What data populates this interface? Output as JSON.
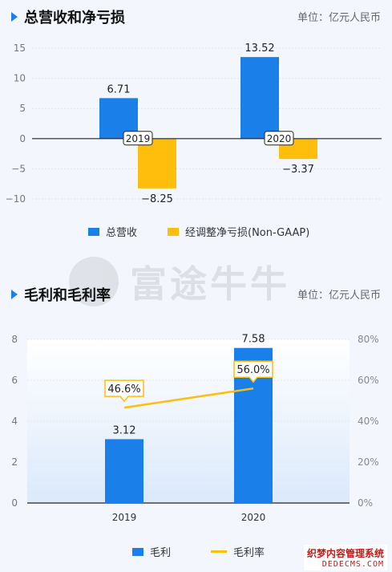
{
  "chart1": {
    "title": "总营收和净亏损",
    "unit": "单位：亿元人民币",
    "legend": [
      {
        "label": "总营收",
        "color": "#1a7fe8"
      },
      {
        "label": "经调整净亏损(Non-GAAP)",
        "color": "#ffbe0b"
      }
    ]
  },
  "chart2": {
    "title": "毛利和毛利率",
    "unit": "单位：亿元人民币",
    "legend": [
      {
        "label": "毛利",
        "color": "#1a7fe8"
      },
      {
        "label": "毛利率",
        "color": "#ffbe0b"
      }
    ]
  },
  "watermark": "富途牛牛",
  "footer": {
    "line1": "织梦内容管理系统",
    "line2": "DEDECMS.COM"
  },
  "chart_data": [
    {
      "type": "bar",
      "categories": [
        "2019",
        "2020"
      ],
      "series": [
        {
          "name": "总营收",
          "values": [
            6.71,
            13.52
          ],
          "color": "#1a7fe8"
        },
        {
          "name": "经调整净亏损(Non-GAAP)",
          "values": [
            -8.25,
            -3.37
          ],
          "color": "#ffbe0b"
        }
      ],
      "ylim": [
        -10,
        15
      ],
      "yticks": [
        15,
        10,
        5,
        0,
        -5,
        -10
      ],
      "data_labels": [
        "6.71",
        "13.52",
        "−8.25",
        "−3.37"
      ]
    },
    {
      "type": "bar",
      "categories": [
        "2019",
        "2020"
      ],
      "series": [
        {
          "name": "毛利",
          "values": [
            3.12,
            7.58
          ],
          "color": "#1a7fe8",
          "axis": "left"
        },
        {
          "name": "毛利率",
          "type": "line",
          "values": [
            46.6,
            56.0
          ],
          "color": "#ffbe0b",
          "axis": "right"
        }
      ],
      "ylim": [
        0,
        8
      ],
      "yticks": [
        8,
        6,
        4,
        2,
        0
      ],
      "y2lim": [
        0,
        80
      ],
      "y2ticks": [
        "80%",
        "60%",
        "40%",
        "20%",
        "0%"
      ],
      "data_labels": [
        "3.12",
        "7.58"
      ],
      "line_labels": [
        "46.6%",
        "56.0%"
      ]
    }
  ]
}
